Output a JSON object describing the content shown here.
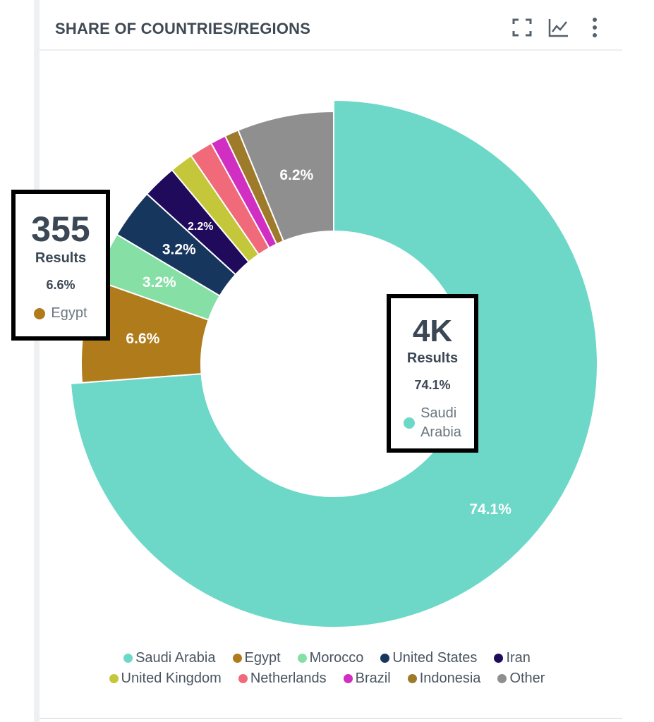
{
  "header": {
    "title": "SHARE OF COUNTRIES/REGIONS",
    "icons": [
      "fullscreen-icon",
      "line-chart-icon",
      "more-vertical-icon"
    ]
  },
  "chart_data": {
    "type": "pie",
    "subtype": "donut",
    "title": "SHARE OF COUNTRIES/REGIONS",
    "legend_position": "bottom",
    "categories": [
      "Saudi Arabia",
      "Egypt",
      "Morocco",
      "United States",
      "Iran",
      "United Kingdom",
      "Netherlands",
      "Brazil",
      "Indonesia",
      "Other"
    ],
    "values": [
      74.1,
      6.6,
      3.2,
      3.2,
      2.2,
      1.5,
      1.5,
      1.0,
      0.9,
      6.2
    ],
    "labels": [
      "74.1%",
      "6.6%",
      "3.2%",
      "3.2%",
      "2.2%",
      "",
      "",
      "",
      "",
      "6.2%"
    ],
    "colors": [
      "#6dd8c8",
      "#b07b1b",
      "#86e0a6",
      "#17365d",
      "#1f0a5c",
      "#c5c73b",
      "#f06a7a",
      "#d12fc1",
      "#9e7b2b",
      "#8f8f8f"
    ]
  },
  "callouts": {
    "egypt": {
      "count": "355",
      "results_label": "Results",
      "percent": "6.6%",
      "name": "Egypt",
      "color": "#b07b1b"
    },
    "saudi": {
      "count": "4K",
      "results_label": "Results",
      "percent": "74.1%",
      "name_line1": "Saudi",
      "name_line2": "Arabia",
      "color": "#6dd8c8"
    }
  }
}
